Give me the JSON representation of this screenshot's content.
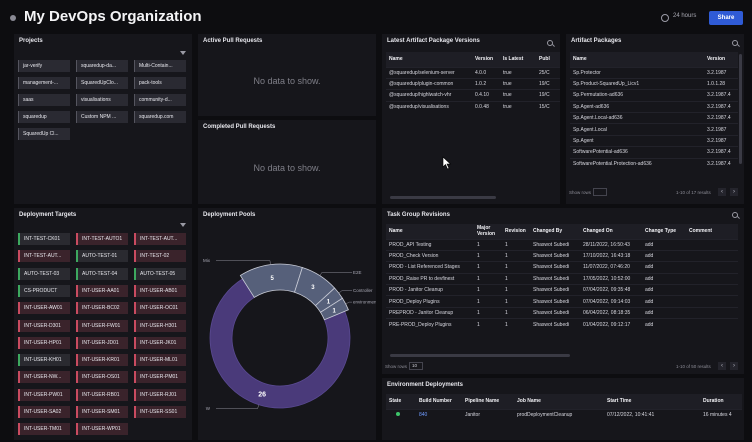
{
  "header": {
    "title": "My DevOps Organization",
    "time_range": "24 hours",
    "share_label": "Share"
  },
  "projects": {
    "title": "Projects",
    "items": [
      "jar-verify",
      "squaredup-da...",
      "Multi-Contain...",
      "management-...",
      "SquaredUpClo...",
      "pack-tools",
      "saas",
      "visualisations",
      "community-d...",
      "squaredup",
      "Custom NPM ...",
      "squaredup.com",
      "SquaredUp Cl..."
    ]
  },
  "active_prs": {
    "title": "Active Pull Requests",
    "empty": "No data to show."
  },
  "completed_prs": {
    "title": "Completed Pull Requests",
    "empty": "No data to show."
  },
  "artifact_versions": {
    "title": "Latest Artifact Package Versions",
    "columns": [
      "Name",
      "Version",
      "Is Latest",
      "Publ"
    ],
    "rows": [
      [
        "@squaredup/selenium-server",
        "4.0.0",
        "true",
        "25/C"
      ],
      [
        "@squaredup/plugin-common",
        "1.0.2",
        "true",
        "19/C"
      ],
      [
        "@squaredup/highlwatch-vhr",
        "0.4.10",
        "true",
        "19/C"
      ],
      [
        "@squaredup/visualisations",
        "0.0.48",
        "true",
        "15/C"
      ]
    ]
  },
  "artifact_packages": {
    "title": "Artifact Packages",
    "columns": [
      "Name",
      "Version"
    ],
    "rows": [
      [
        "Sp.Protector",
        "3.2.1987"
      ],
      [
        "Sp.Product-SquaredUp_Licv1",
        "1.0.1.28"
      ],
      [
        "Sp.Permutation-ad636",
        "3.2.1987.4"
      ],
      [
        "Sp.Agent-ad636",
        "3.2.1987.4"
      ],
      [
        "Sp.Agent.Local-ad636",
        "3.2.1987.4"
      ],
      [
        "Sp.Agent.Local",
        "3.2.1987"
      ],
      [
        "Sp.Agent",
        "3.2.1987"
      ],
      [
        "SoftwarePotential-ad636",
        "3.2.1987.4"
      ],
      [
        "SoftwarePotential.Protection-ad636",
        "3.2.1987.4"
      ]
    ],
    "show_rows_label": "Show rows",
    "page_info": "1-10 of 17 results"
  },
  "deployment_targets": {
    "title": "Deployment Targets",
    "items": [
      {
        "label": "INT-TEST-CK01",
        "status": "green"
      },
      {
        "label": "INT-TEST-AUTO1",
        "status": "red"
      },
      {
        "label": "INT-TEST-AUT...",
        "status": "red"
      },
      {
        "label": "INT-TEST-AUT...",
        "status": "red"
      },
      {
        "label": "AUTO-TEST-01",
        "status": "green"
      },
      {
        "label": "INT-TEST-02",
        "status": "red"
      },
      {
        "label": "AUTO-TEST-03",
        "status": "green"
      },
      {
        "label": "AUTO-TEST-04",
        "status": "green"
      },
      {
        "label": "AUTO-TEST-05",
        "status": "green"
      },
      {
        "label": "CS-PRODUCT",
        "status": "green"
      },
      {
        "label": "INT-USER-AA01",
        "status": "red"
      },
      {
        "label": "INT-USER-AB01",
        "status": "red"
      },
      {
        "label": "INT-USER-AW01",
        "status": "red"
      },
      {
        "label": "INT-USER-BC02",
        "status": "red"
      },
      {
        "label": "INT-USER-OC01",
        "status": "red"
      },
      {
        "label": "INT-USER-D301",
        "status": "red"
      },
      {
        "label": "INT-USER-FW01",
        "status": "red"
      },
      {
        "label": "INT-USER-H301",
        "status": "red"
      },
      {
        "label": "INT-USER-HP01",
        "status": "red"
      },
      {
        "label": "INT-USER-JD01",
        "status": "red"
      },
      {
        "label": "INT-USER-JK01",
        "status": "red"
      },
      {
        "label": "INT-USER-KH01",
        "status": "green"
      },
      {
        "label": "INT-USER-KR01",
        "status": "red"
      },
      {
        "label": "INT-USER-ML01",
        "status": "red"
      },
      {
        "label": "INT-USER-NW...",
        "status": "red"
      },
      {
        "label": "INT-USER-OS01",
        "status": "red"
      },
      {
        "label": "INT-USER-PM01",
        "status": "red"
      },
      {
        "label": "INT-USER-PW01",
        "status": "red"
      },
      {
        "label": "INT-USER-RB01",
        "status": "red"
      },
      {
        "label": "INT-USER-RJ01",
        "status": "red"
      },
      {
        "label": "INT-USER-SA02",
        "status": "red"
      },
      {
        "label": "INT-USER-SM01",
        "status": "red"
      },
      {
        "label": "INT-USER-SS01",
        "status": "red"
      },
      {
        "label": "INT-USER-TM01",
        "status": "red"
      },
      {
        "label": "INT-USER-WP01",
        "status": "red"
      }
    ]
  },
  "deployment_pools": {
    "title": "Deployment Pools",
    "segments": [
      {
        "label": "26",
        "leader": "W",
        "value": 26,
        "color": "#4a3a7a"
      },
      {
        "label": "5",
        "leader": "Mix",
        "value": 5,
        "color": "#56607a"
      },
      {
        "label": "3",
        "leader": "E2E",
        "value": 3,
        "color": "#56607a"
      },
      {
        "label": "1",
        "leader": "Controller",
        "value": 1,
        "color": "#56607a"
      },
      {
        "label": "1",
        "leader": "environment-W...",
        "value": 1,
        "color": "#56607a"
      }
    ]
  },
  "task_groups": {
    "title": "Task Group Revisions",
    "columns": [
      "Name",
      "Major Version",
      "Revision",
      "Changed By",
      "Changed On",
      "Change Type",
      "Comment"
    ],
    "rows": [
      [
        "PROD_API Testing",
        "1",
        "1",
        "Shaswot Subedi",
        "28/11/2022, 16:50:43",
        "add",
        ""
      ],
      [
        "PROD_Check Version",
        "1",
        "1",
        "Shaswot Subedi",
        "17/10/2022, 16:43:18",
        "add",
        ""
      ],
      [
        "PROD - List Referenced Stages",
        "1",
        "1",
        "Shaswot Subedi",
        "11/07/2022, 07:46:20",
        "add",
        ""
      ],
      [
        "PROD_Raise PR to devfinest",
        "1",
        "1",
        "Shaswot Subedi",
        "17/05/2022, 10:52:00",
        "add",
        ""
      ],
      [
        "PROD - Janitor Cleanup",
        "1",
        "1",
        "Shaswot Subedi",
        "07/04/2022, 09:35:48",
        "add",
        ""
      ],
      [
        "PROD_Deploy Plugins",
        "1",
        "1",
        "Shaswot Subedi",
        "07/04/2022, 09:14:03",
        "add",
        ""
      ],
      [
        "PREPROD - Janitor Cleanup",
        "1",
        "1",
        "Shaswot Subedi",
        "06/04/2022, 08:18:35",
        "add",
        ""
      ],
      [
        "PRE-PROD_Deploy Plugins",
        "1",
        "1",
        "Shaswot Subedi",
        "01/04/2022, 09:12:17",
        "add",
        ""
      ]
    ],
    "show_rows_label": "Show rows",
    "show_rows_value": "10",
    "page_info": "1-10 of 50 results"
  },
  "env_deployments": {
    "title": "Environment Deployments",
    "columns": [
      "State",
      "Build Number",
      "Pipeline Name",
      "Job Name",
      "Start Time",
      "Duration"
    ],
    "rows": [
      [
        "",
        "840",
        "Janitor",
        "prodDeploymentCleanup",
        "07/12/2022, 10:41:41",
        "16 minutes 4"
      ]
    ]
  }
}
